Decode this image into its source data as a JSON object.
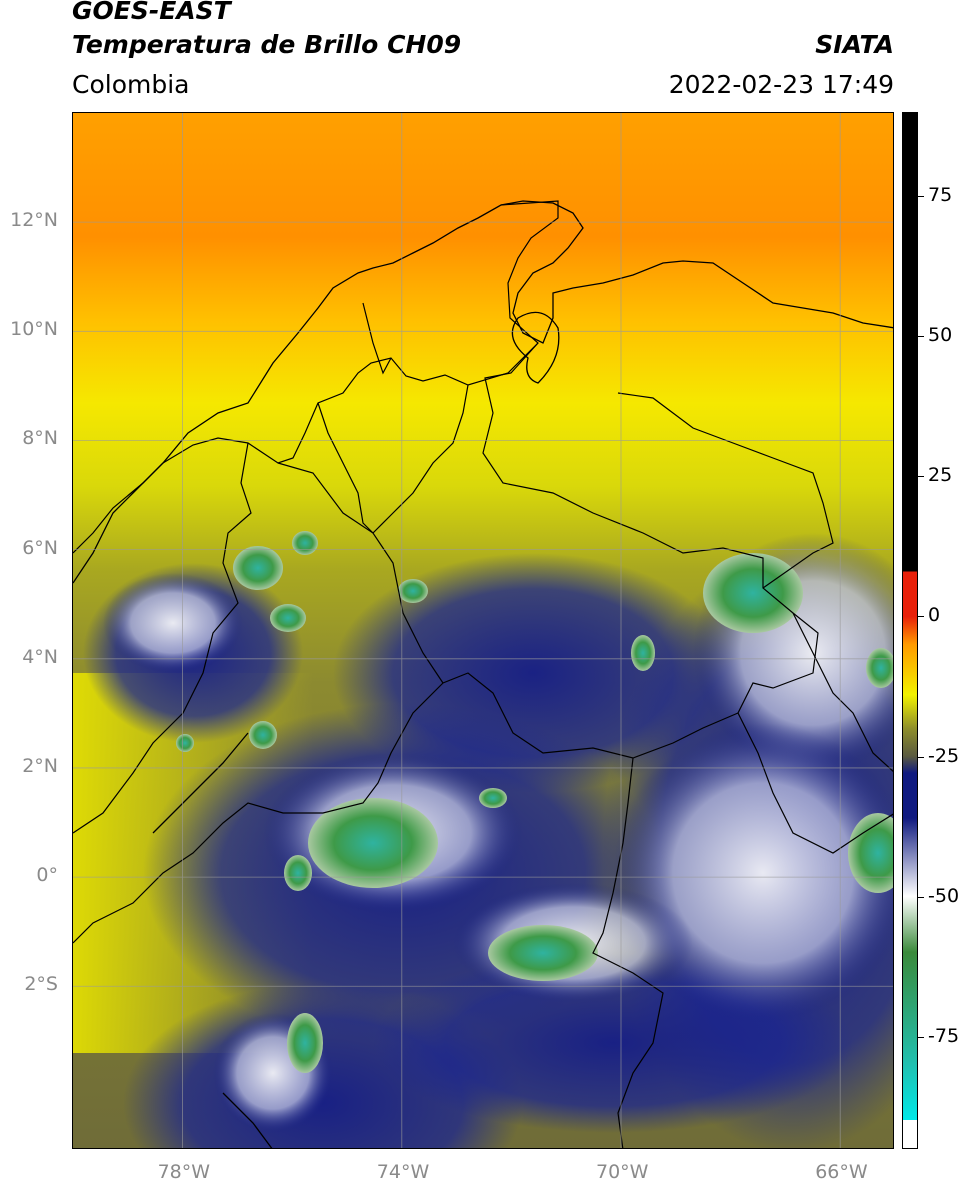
{
  "header": {
    "satellite": "GOES-EAST",
    "product": "Temperatura de Brillo CH09",
    "region": "Colombia",
    "agency": "SIATA",
    "datetime": "2022-02-23 17:49"
  },
  "map": {
    "lon_range": [
      -80,
      -65
    ],
    "lat_range": [
      -5,
      14
    ],
    "lat_ticks": [
      {
        "value": 12,
        "label": "12°N"
      },
      {
        "value": 10,
        "label": "10°N"
      },
      {
        "value": 8,
        "label": "8°N"
      },
      {
        "value": 6,
        "label": "6°N"
      },
      {
        "value": 4,
        "label": "4°N"
      },
      {
        "value": 2,
        "label": "2°N"
      },
      {
        "value": 0,
        "label": "0°"
      },
      {
        "value": -2,
        "label": "2°S"
      }
    ],
    "lon_ticks": [
      {
        "value": -78,
        "label": "78°W"
      },
      {
        "value": -74,
        "label": "74°W"
      },
      {
        "value": -70,
        "label": "70°W"
      },
      {
        "value": -66,
        "label": "66°W"
      }
    ],
    "gridlines": true
  },
  "colorbar": {
    "range": [
      -95,
      90
    ],
    "tick_labels": [
      {
        "value": 75,
        "label": "75"
      },
      {
        "value": 50,
        "label": "50"
      },
      {
        "value": 25,
        "label": "25"
      },
      {
        "value": 0,
        "label": "0"
      },
      {
        "value": -25,
        "label": "-25"
      },
      {
        "value": -50,
        "label": "-50"
      },
      {
        "value": -75,
        "label": "-75"
      }
    ],
    "colors": {
      "above": "#000000",
      "warm_red": "#e8200a",
      "orange": "#ff9a00",
      "yellow": "#f2f200",
      "olive": "#8f8f2a",
      "dark_olive": "#5a5a40",
      "navy": "#101a80",
      "white": "#ffffff",
      "green": "#3a8a3a",
      "teal": "#20c0b0",
      "cyan": "#00e8e8"
    }
  }
}
